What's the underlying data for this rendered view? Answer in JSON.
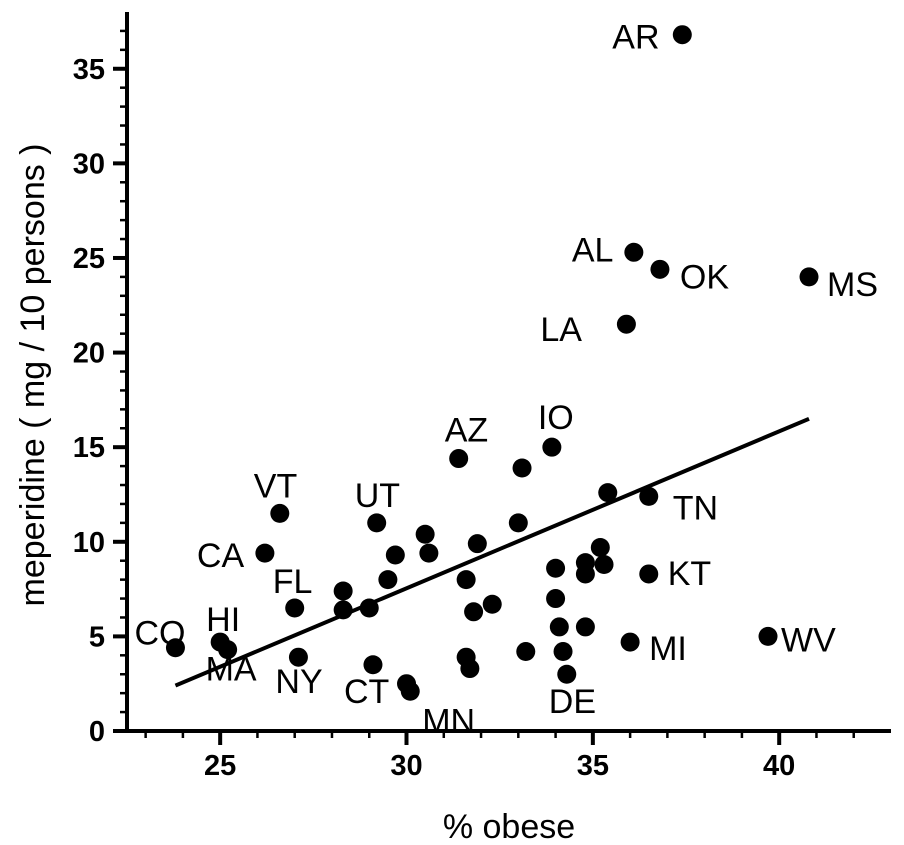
{
  "chart_data": {
    "type": "scatter",
    "xlabel": "% obese",
    "ylabel": "meperidine ( mg / 10 persons )",
    "xlim": [
      22.5,
      43
    ],
    "ylim": [
      0,
      38
    ],
    "xticks": [
      25,
      30,
      35,
      40
    ],
    "yticks": [
      0,
      5,
      10,
      15,
      20,
      25,
      30,
      35
    ],
    "grid": false,
    "legend": "none",
    "point_color": "#000000",
    "trendline": {
      "x": [
        23.8,
        40.8
      ],
      "y": [
        2.4,
        16.5
      ]
    },
    "points": [
      {
        "x": 37.4,
        "y": 36.8,
        "label": "AR"
      },
      {
        "x": 36.1,
        "y": 25.3,
        "label": "AL"
      },
      {
        "x": 36.8,
        "y": 24.4,
        "label": "OK"
      },
      {
        "x": 40.8,
        "y": 24.0,
        "label": "MS"
      },
      {
        "x": 35.9,
        "y": 21.5,
        "label": "LA"
      },
      {
        "x": 31.4,
        "y": 14.4,
        "label": "AZ"
      },
      {
        "x": 33.9,
        "y": 15.0,
        "label": "IO"
      },
      {
        "x": 33.1,
        "y": 13.9,
        "label": ""
      },
      {
        "x": 26.6,
        "y": 11.5,
        "label": "VT"
      },
      {
        "x": 29.2,
        "y": 11.0,
        "label": "UT"
      },
      {
        "x": 35.4,
        "y": 12.6,
        "label": ""
      },
      {
        "x": 36.5,
        "y": 12.4,
        "label": "TN"
      },
      {
        "x": 26.2,
        "y": 9.4,
        "label": "CA"
      },
      {
        "x": 27.0,
        "y": 6.5,
        "label": "FL"
      },
      {
        "x": 23.8,
        "y": 4.4,
        "label": "CO"
      },
      {
        "x": 25.0,
        "y": 4.7,
        "label": "HI"
      },
      {
        "x": 25.2,
        "y": 4.3,
        "label": "MA"
      },
      {
        "x": 27.1,
        "y": 3.9,
        "label": "NY"
      },
      {
        "x": 29.1,
        "y": 3.5,
        "label": "CT"
      },
      {
        "x": 30.0,
        "y": 2.5,
        "label": ""
      },
      {
        "x": 30.1,
        "y": 2.1,
        "label": "MN"
      },
      {
        "x": 34.3,
        "y": 3.0,
        "label": "DE"
      },
      {
        "x": 36.0,
        "y": 4.7,
        "label": "MI"
      },
      {
        "x": 36.5,
        "y": 8.3,
        "label": "KT"
      },
      {
        "x": 39.7,
        "y": 5.0,
        "label": "WV"
      },
      {
        "x": 28.3,
        "y": 7.4,
        "label": ""
      },
      {
        "x": 28.3,
        "y": 6.4,
        "label": ""
      },
      {
        "x": 29.0,
        "y": 6.5,
        "label": ""
      },
      {
        "x": 29.5,
        "y": 8.0,
        "label": ""
      },
      {
        "x": 29.7,
        "y": 9.3,
        "label": ""
      },
      {
        "x": 30.5,
        "y": 10.4,
        "label": ""
      },
      {
        "x": 30.6,
        "y": 9.4,
        "label": ""
      },
      {
        "x": 31.6,
        "y": 8.0,
        "label": ""
      },
      {
        "x": 31.9,
        "y": 9.9,
        "label": ""
      },
      {
        "x": 31.8,
        "y": 6.3,
        "label": ""
      },
      {
        "x": 32.3,
        "y": 6.7,
        "label": ""
      },
      {
        "x": 31.6,
        "y": 3.9,
        "label": ""
      },
      {
        "x": 31.7,
        "y": 3.3,
        "label": ""
      },
      {
        "x": 33.0,
        "y": 11.0,
        "label": ""
      },
      {
        "x": 33.2,
        "y": 4.2,
        "label": ""
      },
      {
        "x": 34.0,
        "y": 8.6,
        "label": ""
      },
      {
        "x": 34.0,
        "y": 7.0,
        "label": ""
      },
      {
        "x": 34.1,
        "y": 5.5,
        "label": ""
      },
      {
        "x": 34.2,
        "y": 4.2,
        "label": ""
      },
      {
        "x": 34.8,
        "y": 8.9,
        "label": ""
      },
      {
        "x": 34.8,
        "y": 8.3,
        "label": ""
      },
      {
        "x": 34.8,
        "y": 5.5,
        "label": ""
      },
      {
        "x": 35.2,
        "y": 9.7,
        "label": ""
      },
      {
        "x": 35.3,
        "y": 8.8,
        "label": ""
      }
    ]
  }
}
